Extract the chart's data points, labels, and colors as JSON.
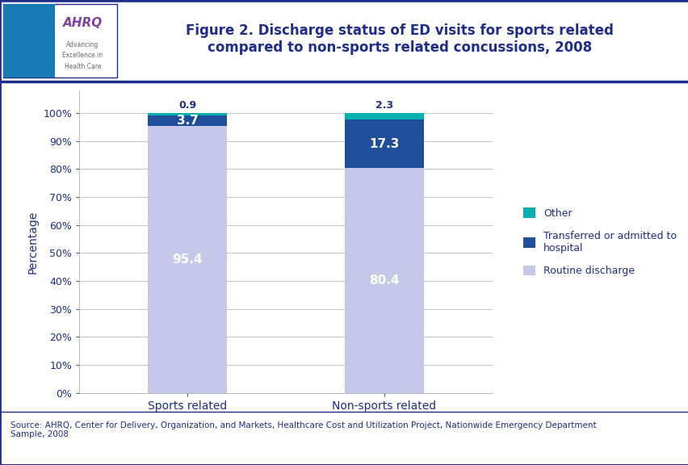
{
  "title": "Figure 2. Discharge status of ED visits for sports related\ncompared to non-sports related concussions, 2008",
  "categories": [
    "Sports related",
    "Non-sports related"
  ],
  "routine_discharge": [
    95.4,
    80.4
  ],
  "transferred": [
    3.7,
    17.3
  ],
  "other": [
    0.9,
    2.3
  ],
  "colors": {
    "routine_discharge": "#c5c8e8",
    "transferred": "#1f4e9a",
    "other": "#00b0b0"
  },
  "legend_labels": [
    "Other",
    "Transferred or admitted to\nhospital",
    "Routine discharge"
  ],
  "ylabel": "Percentage",
  "yticks": [
    0,
    10,
    20,
    30,
    40,
    50,
    60,
    70,
    80,
    90,
    100
  ],
  "ytick_labels": [
    "0%",
    "10%",
    "20%",
    "30%",
    "40%",
    "50%",
    "60%",
    "70%",
    "80%",
    "90%",
    "100%"
  ],
  "title_color": "#1f2d8a",
  "axis_color": "#1f2d8a",
  "tick_color": "#1f2d8a",
  "label_color": "#1f2d8a",
  "source_text": "Source: AHRQ, Center for Delivery, Organization, and Markets, Healthcare Cost and Utilization Project, Nationwide Emergency Department\nSample, 2008",
  "border_color": "#1f2d8a",
  "bar_width": 0.4,
  "ahrq_bg_color": "#1a7ab5",
  "ahrq_text_color": "#ffffff"
}
